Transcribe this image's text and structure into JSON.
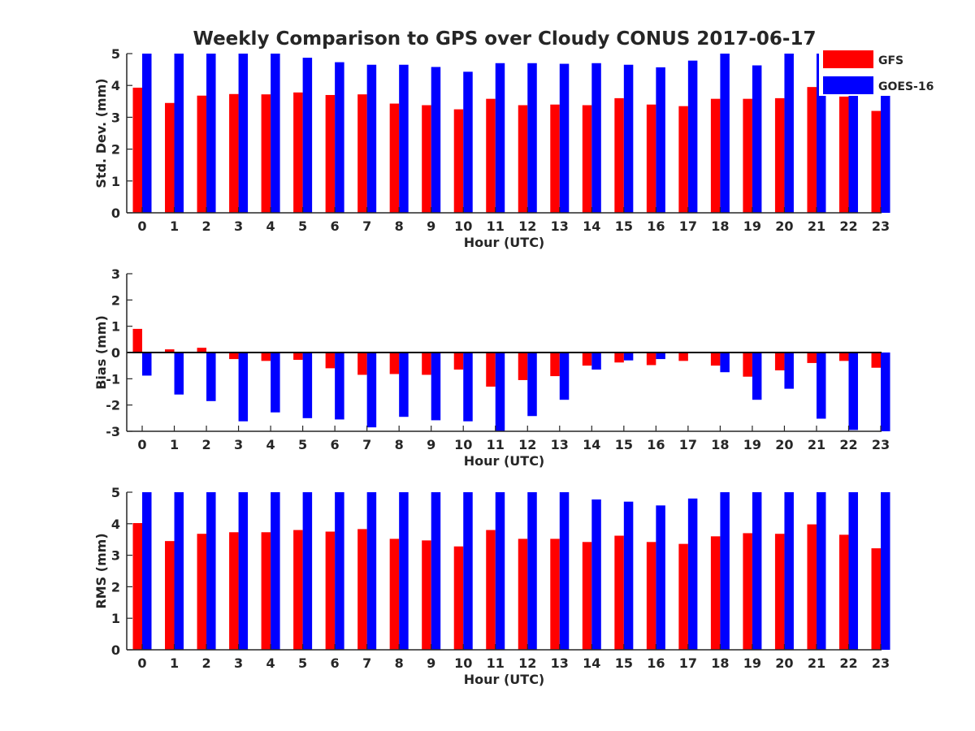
{
  "title": "Weekly Comparison to GPS over Cloudy CONUS 2017-06-17",
  "legend": {
    "position": "top-right",
    "entries": [
      {
        "name": "GFS",
        "color": "#ff0000"
      },
      {
        "name": "GOES-16",
        "color": "#0000ff"
      }
    ]
  },
  "chart_data": [
    {
      "type": "bar",
      "ylabel": "Std. Dev. (mm)",
      "xlabel": "Hour (UTC)",
      "ylim": [
        0,
        5
      ],
      "yticks": [
        0,
        1,
        2,
        3,
        4,
        5
      ],
      "categories": [
        "0",
        "1",
        "2",
        "3",
        "4",
        "5",
        "6",
        "7",
        "8",
        "9",
        "10",
        "11",
        "12",
        "13",
        "14",
        "15",
        "16",
        "17",
        "18",
        "19",
        "20",
        "21",
        "22",
        "23"
      ],
      "series": [
        {
          "name": "GFS",
          "color": "#ff0000",
          "values": [
            3.93,
            3.45,
            3.68,
            3.73,
            3.72,
            3.78,
            3.7,
            3.72,
            3.43,
            3.38,
            3.25,
            3.58,
            3.38,
            3.4,
            3.38,
            3.6,
            3.4,
            3.35,
            3.58,
            3.58,
            3.6,
            3.95,
            3.65,
            3.2
          ]
        },
        {
          "name": "GOES-16",
          "color": "#0000ff",
          "values": [
            5.0,
            5.0,
            5.0,
            5.0,
            5.0,
            4.87,
            4.73,
            4.65,
            4.65,
            4.58,
            4.43,
            4.7,
            4.7,
            4.68,
            4.7,
            4.65,
            4.57,
            4.78,
            5.0,
            4.63,
            5.0,
            5.0,
            5.0,
            4.9
          ]
        }
      ]
    },
    {
      "type": "bar",
      "ylabel": "Bias (mm)",
      "xlabel": "Hour (UTC)",
      "ylim": [
        -3,
        3
      ],
      "yticks": [
        -3,
        -2,
        -1,
        0,
        1,
        2,
        3
      ],
      "categories": [
        "0",
        "1",
        "2",
        "3",
        "4",
        "5",
        "6",
        "7",
        "8",
        "9",
        "10",
        "11",
        "12",
        "13",
        "14",
        "15",
        "16",
        "17",
        "18",
        "19",
        "20",
        "21",
        "22",
        "23"
      ],
      "series": [
        {
          "name": "GFS",
          "color": "#ff0000",
          "values": [
            0.9,
            0.12,
            0.18,
            -0.25,
            -0.32,
            -0.28,
            -0.6,
            -0.85,
            -0.82,
            -0.85,
            -0.65,
            -1.3,
            -1.05,
            -0.9,
            -0.5,
            -0.38,
            -0.48,
            -0.32,
            -0.5,
            -0.92,
            -0.68,
            -0.4,
            -0.32,
            -0.58
          ]
        },
        {
          "name": "GOES-16",
          "color": "#0000ff",
          "values": [
            -0.88,
            -1.6,
            -1.85,
            -2.62,
            -2.28,
            -2.5,
            -2.55,
            -2.85,
            -2.45,
            -2.58,
            -2.62,
            -3.0,
            -2.42,
            -1.8,
            -0.65,
            -0.3,
            -0.25,
            0.0,
            -0.75,
            -1.8,
            -1.38,
            -2.52,
            -2.95,
            -3.0
          ]
        }
      ]
    },
    {
      "type": "bar",
      "ylabel": "RMS (mm)",
      "xlabel": "Hour (UTC)",
      "ylim": [
        0,
        5
      ],
      "yticks": [
        0,
        1,
        2,
        3,
        4,
        5
      ],
      "categories": [
        "0",
        "1",
        "2",
        "3",
        "4",
        "5",
        "6",
        "7",
        "8",
        "9",
        "10",
        "11",
        "12",
        "13",
        "14",
        "15",
        "16",
        "17",
        "18",
        "19",
        "20",
        "21",
        "22",
        "23"
      ],
      "series": [
        {
          "name": "GFS",
          "color": "#ff0000",
          "values": [
            4.02,
            3.45,
            3.68,
            3.73,
            3.73,
            3.8,
            3.75,
            3.83,
            3.52,
            3.47,
            3.28,
            3.8,
            3.52,
            3.52,
            3.42,
            3.62,
            3.42,
            3.36,
            3.6,
            3.7,
            3.68,
            3.98,
            3.65,
            3.22
          ]
        },
        {
          "name": "GOES-16",
          "color": "#0000ff",
          "values": [
            5.0,
            5.0,
            5.0,
            5.0,
            5.0,
            5.0,
            5.0,
            5.0,
            5.0,
            5.0,
            5.0,
            5.0,
            5.0,
            5.0,
            4.77,
            4.7,
            4.58,
            4.8,
            5.0,
            5.0,
            5.0,
            5.0,
            5.0,
            5.0
          ]
        }
      ]
    }
  ]
}
